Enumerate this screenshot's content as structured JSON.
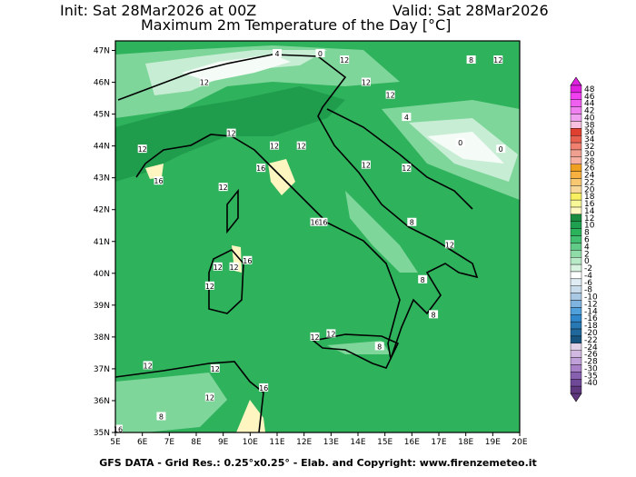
{
  "header": {
    "init": "Init: Sat 28Mar2026 at 00Z",
    "valid": "Valid: Sat 28Mar2026",
    "title": "Maximum 2m Temperature of the Day [°C]"
  },
  "footer": "GFS DATA - Grid Res.: 0.25°x0.25° - Elab. and Copyright: www.firenzemeteo.it",
  "map": {
    "lon_labels": [
      "5E",
      "6E",
      "7E",
      "8E",
      "9E",
      "10E",
      "11E",
      "12E",
      "13E",
      "14E",
      "15E",
      "16E",
      "17E",
      "18E",
      "19E",
      "20E"
    ],
    "lat_labels": [
      "35N",
      "36N",
      "37N",
      "38N",
      "39N",
      "40N",
      "41N",
      "42N",
      "43N",
      "44N",
      "45N",
      "46N",
      "47N"
    ],
    "contour_labels": [
      {
        "t": "12",
        "lon": 8.3,
        "lat": 46.0
      },
      {
        "t": "8",
        "lon": 18.2,
        "lat": 46.7
      },
      {
        "t": "12",
        "lon": 19.2,
        "lat": 46.7
      },
      {
        "t": "12",
        "lon": 13.5,
        "lat": 46.7
      },
      {
        "t": "0",
        "lon": 12.6,
        "lat": 46.9
      },
      {
        "t": "4",
        "lon": 11.0,
        "lat": 46.9
      },
      {
        "t": "12",
        "lon": 14.3,
        "lat": 46.0
      },
      {
        "t": "12",
        "lon": 15.2,
        "lat": 45.6
      },
      {
        "t": "4",
        "lon": 15.8,
        "lat": 44.9
      },
      {
        "t": "12",
        "lon": 9.3,
        "lat": 44.4
      },
      {
        "t": "12",
        "lon": 10.9,
        "lat": 44.0
      },
      {
        "t": "12",
        "lon": 11.9,
        "lat": 44.0
      },
      {
        "t": "12",
        "lon": 6.0,
        "lat": 43.9
      },
      {
        "t": "16",
        "lon": 10.4,
        "lat": 43.3
      },
      {
        "t": "16",
        "lon": 6.6,
        "lat": 42.9
      },
      {
        "t": "12",
        "lon": 14.3,
        "lat": 43.4
      },
      {
        "t": "12",
        "lon": 15.8,
        "lat": 43.3
      },
      {
        "t": "0",
        "lon": 17.8,
        "lat": 44.1
      },
      {
        "t": "0",
        "lon": 19.3,
        "lat": 43.9
      },
      {
        "t": "12",
        "lon": 9.0,
        "lat": 42.7
      },
      {
        "t": "16",
        "lon": 12.4,
        "lat": 41.6
      },
      {
        "t": "16",
        "lon": 12.7,
        "lat": 41.6
      },
      {
        "t": "8",
        "lon": 16.0,
        "lat": 41.6
      },
      {
        "t": "12",
        "lon": 17.4,
        "lat": 40.9
      },
      {
        "t": "12",
        "lon": 8.8,
        "lat": 40.2
      },
      {
        "t": "12",
        "lon": 9.4,
        "lat": 40.2
      },
      {
        "t": "16",
        "lon": 9.9,
        "lat": 40.4
      },
      {
        "t": "12",
        "lon": 8.5,
        "lat": 39.6
      },
      {
        "t": "8",
        "lon": 16.4,
        "lat": 39.8
      },
      {
        "t": "8",
        "lon": 16.8,
        "lat": 38.7
      },
      {
        "t": "12",
        "lon": 12.4,
        "lat": 38.0
      },
      {
        "t": "12",
        "lon": 13.0,
        "lat": 38.1
      },
      {
        "t": "8",
        "lon": 14.8,
        "lat": 37.7
      },
      {
        "t": "12",
        "lon": 6.2,
        "lat": 37.1
      },
      {
        "t": "12",
        "lon": 8.7,
        "lat": 37.0
      },
      {
        "t": "12",
        "lon": 8.5,
        "lat": 36.1
      },
      {
        "t": "16",
        "lon": 10.5,
        "lat": 36.4
      },
      {
        "t": "8",
        "lon": 6.7,
        "lat": 35.5
      },
      {
        "t": "16",
        "lon": 5.1,
        "lat": 35.1
      }
    ],
    "colors": {
      "base": "#2fb25c",
      "dark": "#1f9c4c",
      "light": "#7fd69a",
      "pale": "#c7eed4",
      "white": "#f5fbf7",
      "sand": "#fff5c0"
    }
  },
  "colorbar": {
    "labels": [
      "48",
      "46",
      "44",
      "42",
      "40",
      "38",
      "36",
      "34",
      "32",
      "30",
      "28",
      "26",
      "24",
      "22",
      "20",
      "18",
      "16",
      "14",
      "12",
      "10",
      "8",
      "6",
      "4",
      "2",
      "0",
      "-2",
      "-4",
      "-6",
      "-8",
      "-10",
      "-12",
      "-14",
      "-16",
      "-18",
      "-20",
      "-22",
      "-24",
      "-26",
      "-28",
      "-30",
      "-35",
      "-40"
    ],
    "colors": [
      "#e020e0",
      "#f040f0",
      "#f060f0",
      "#f080f0",
      "#f0a0f0",
      "#f8c0e0",
      "#e04030",
      "#e86050",
      "#f08070",
      "#f0a090",
      "#f8b0a0",
      "#f0a020",
      "#f8b040",
      "#f8c870",
      "#f8d898",
      "#f8f060",
      "#f8f898",
      "#fff8c0",
      "#1a8c40",
      "#1fa050",
      "#2bb35c",
      "#40c070",
      "#60cc88",
      "#90dca8",
      "#b8eac8",
      "#d8f4e0",
      "#ffffff",
      "#e0ecf4",
      "#c8dcec",
      "#a8c8e4",
      "#80b4e0",
      "#50a0dc",
      "#3088cc",
      "#2878b4",
      "#20689c",
      "#185480",
      "#e0d0e8",
      "#d0b8e0",
      "#c0a0d8",
      "#a880c8",
      "#8860b0",
      "#704898",
      "#603880"
    ]
  }
}
